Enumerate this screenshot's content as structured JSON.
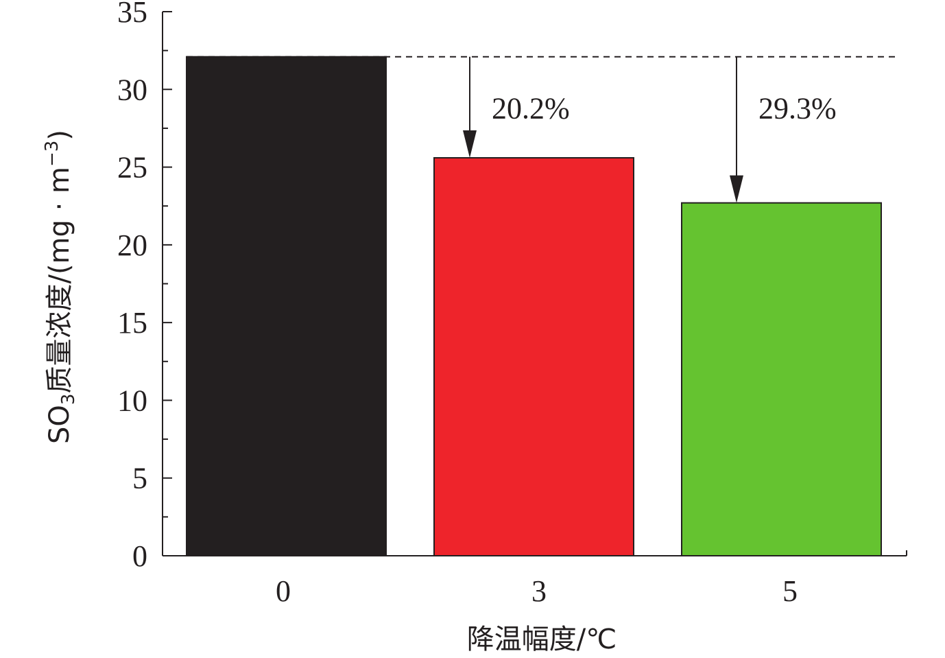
{
  "chart_data": {
    "type": "bar",
    "categories": [
      "0",
      "3",
      "5"
    ],
    "values": [
      32.1,
      25.6,
      22.7
    ],
    "colors": [
      "#231f20",
      "#ee242b",
      "#65c330"
    ],
    "xlabel": "降温幅度/℃",
    "ylabel": {
      "prefix": "SO",
      "subscript": "3",
      "middle": "质量浓度/(mg · m",
      "superscript": "−3",
      "suffix": ")"
    },
    "ylim": [
      0,
      35
    ],
    "yticks": [
      "0",
      "5",
      "10",
      "15",
      "20",
      "25",
      "30",
      "35"
    ],
    "minor_ticks": true,
    "grid": false,
    "reference_line": {
      "value": 32.1,
      "style": "dashed"
    },
    "annotations": [
      {
        "category": "3",
        "text": "20.2%"
      },
      {
        "category": "5",
        "text": "29.3%"
      }
    ]
  }
}
